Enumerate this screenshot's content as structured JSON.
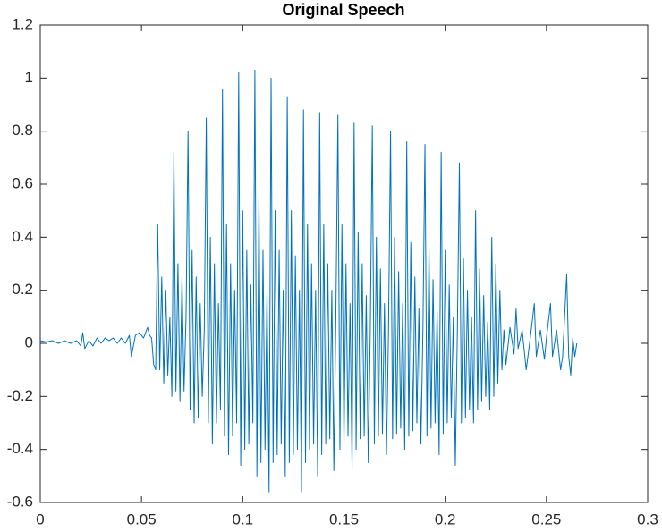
{
  "chart_data": {
    "type": "line",
    "title": "Original Speech",
    "color": "#0072bd",
    "xlim": [
      0,
      0.3
    ],
    "xticks": [
      0,
      0.05,
      0.1,
      0.15,
      0.2,
      0.25,
      0.3
    ],
    "ylim": [
      -0.6,
      1.2
    ],
    "yticks": [
      -0.6,
      -0.4,
      -0.2,
      0,
      0.2,
      0.4,
      0.6,
      0.8,
      1,
      1.2
    ],
    "x": [
      0,
      0.003,
      0.006,
      0.009,
      0.012,
      0.015,
      0.018,
      0.02,
      0.021,
      0.022,
      0.024,
      0.026,
      0.028,
      0.03,
      0.032,
      0.034,
      0.036,
      0.038,
      0.04,
      0.042,
      0.044,
      0.045,
      0.047,
      0.049,
      0.051,
      0.053,
      0.054,
      0.055,
      0.056,
      0.057,
      0.058,
      0.059,
      0.06,
      0.061,
      0.062,
      0.063,
      0.064,
      0.065,
      0.066,
      0.067,
      0.068,
      0.069,
      0.07,
      0.071,
      0.072,
      0.073,
      0.074,
      0.075,
      0.076,
      0.077,
      0.078,
      0.079,
      0.08,
      0.081,
      0.082,
      0.083,
      0.084,
      0.085,
      0.086,
      0.087,
      0.088,
      0.089,
      0.09,
      0.091,
      0.092,
      0.093,
      0.094,
      0.095,
      0.096,
      0.097,
      0.098,
      0.099,
      0.1,
      0.101,
      0.102,
      0.103,
      0.104,
      0.105,
      0.106,
      0.107,
      0.108,
      0.109,
      0.11,
      0.111,
      0.112,
      0.113,
      0.114,
      0.115,
      0.116,
      0.117,
      0.118,
      0.119,
      0.12,
      0.121,
      0.122,
      0.123,
      0.124,
      0.125,
      0.126,
      0.127,
      0.128,
      0.129,
      0.13,
      0.131,
      0.132,
      0.133,
      0.134,
      0.135,
      0.136,
      0.137,
      0.138,
      0.139,
      0.14,
      0.141,
      0.142,
      0.143,
      0.144,
      0.145,
      0.146,
      0.147,
      0.148,
      0.149,
      0.15,
      0.151,
      0.152,
      0.153,
      0.154,
      0.155,
      0.156,
      0.157,
      0.158,
      0.159,
      0.16,
      0.161,
      0.162,
      0.163,
      0.164,
      0.165,
      0.166,
      0.167,
      0.168,
      0.169,
      0.17,
      0.171,
      0.172,
      0.173,
      0.174,
      0.175,
      0.176,
      0.177,
      0.178,
      0.179,
      0.18,
      0.181,
      0.182,
      0.183,
      0.184,
      0.185,
      0.186,
      0.187,
      0.188,
      0.189,
      0.19,
      0.191,
      0.192,
      0.193,
      0.194,
      0.195,
      0.196,
      0.197,
      0.198,
      0.199,
      0.2,
      0.201,
      0.202,
      0.203,
      0.204,
      0.205,
      0.206,
      0.207,
      0.208,
      0.209,
      0.21,
      0.211,
      0.212,
      0.213,
      0.214,
      0.215,
      0.216,
      0.217,
      0.218,
      0.219,
      0.22,
      0.221,
      0.222,
      0.223,
      0.224,
      0.225,
      0.226,
      0.227,
      0.228,
      0.229,
      0.23,
      0.232,
      0.234,
      0.235,
      0.236,
      0.238,
      0.24,
      0.242,
      0.244,
      0.245,
      0.247,
      0.249,
      0.25,
      0.252,
      0.253,
      0.255,
      0.257,
      0.258,
      0.26,
      0.261,
      0.262,
      0.263,
      0.264,
      0.265
    ],
    "values": [
      0.01,
      0.005,
      0.01,
      0,
      0.01,
      0,
      0.01,
      -0.01,
      0.04,
      -0.02,
      0.01,
      -0.01,
      0.02,
      0,
      0.02,
      0.01,
      0.02,
      0,
      0.02,
      0,
      0.03,
      -0.05,
      0.03,
      0.04,
      0.02,
      0.06,
      0.03,
      0.02,
      -0.08,
      -0.1,
      0.45,
      -0.1,
      0.25,
      -0.15,
      0.2,
      -0.12,
      0.1,
      -0.2,
      0.72,
      -0.18,
      0.3,
      -0.22,
      0.25,
      -0.18,
      0.1,
      0.8,
      -0.25,
      0.35,
      -0.3,
      0.25,
      -0.28,
      0.15,
      -0.2,
      0.05,
      0.85,
      -0.3,
      0.4,
      -0.38,
      0.3,
      -0.3,
      0.15,
      -0.25,
      0.96,
      -0.35,
      0.45,
      -0.42,
      0.3,
      -0.35,
      0.2,
      -0.3,
      1.02,
      -0.46,
      0.5,
      -0.4,
      0.35,
      -0.38,
      0.22,
      -0.3,
      1.03,
      -0.5,
      0.55,
      -0.45,
      0.35,
      -0.4,
      0.2,
      -0.56,
      1.0,
      -0.45,
      0.5,
      -0.42,
      0.35,
      -0.38,
      0.2,
      -0.5,
      0.93,
      -0.45,
      0.5,
      -0.42,
      0.33,
      -0.4,
      0.2,
      -0.56,
      0.88,
      -0.45,
      0.45,
      -0.4,
      0.3,
      -0.38,
      0.2,
      -0.5,
      0.87,
      -0.42,
      0.45,
      -0.38,
      0.3,
      -0.36,
      0.2,
      -0.48,
      0.1,
      0.86,
      -0.4,
      0.45,
      -0.38,
      0.3,
      -0.35,
      0.15,
      -0.47,
      0.83,
      -0.4,
      0.42,
      -0.36,
      0.3,
      -0.35,
      0.18,
      -0.45,
      0.05,
      0.82,
      -0.38,
      0.4,
      -0.35,
      0.28,
      -0.34,
      0.15,
      -0.42,
      0.05,
      0.8,
      -0.36,
      0.4,
      -0.34,
      0.27,
      -0.32,
      0.15,
      -0.4,
      0.76,
      -0.35,
      0.38,
      -0.33,
      0.25,
      -0.3,
      0.13,
      -0.38,
      0.05,
      0.75,
      -0.35,
      0.36,
      -0.32,
      0.24,
      -0.3,
      0.12,
      -0.42,
      0.72,
      -0.34,
      0.35,
      -0.3,
      0.22,
      -0.28,
      0.1,
      -0.46,
      0.05,
      0.68,
      -0.3,
      0.32,
      -0.28,
      0.2,
      -0.25,
      0.1,
      -0.3,
      0.5,
      -0.25,
      0.28,
      -0.22,
      0.18,
      -0.2,
      0.08,
      -0.25,
      0.4,
      -0.2,
      0.3,
      -0.15,
      0.2,
      -0.1,
      0.05,
      -0.08,
      0.06,
      -0.04,
      0.13,
      -0.02,
      0.05,
      -0.1,
      0.02,
      0.15,
      -0.05,
      0.05,
      -0.06,
      0.02,
      0.15,
      -0.05,
      0.05,
      -0.1,
      -0.05,
      0.26,
      -0.05,
      -0.12,
      0.02,
      -0.05,
      0
    ]
  }
}
